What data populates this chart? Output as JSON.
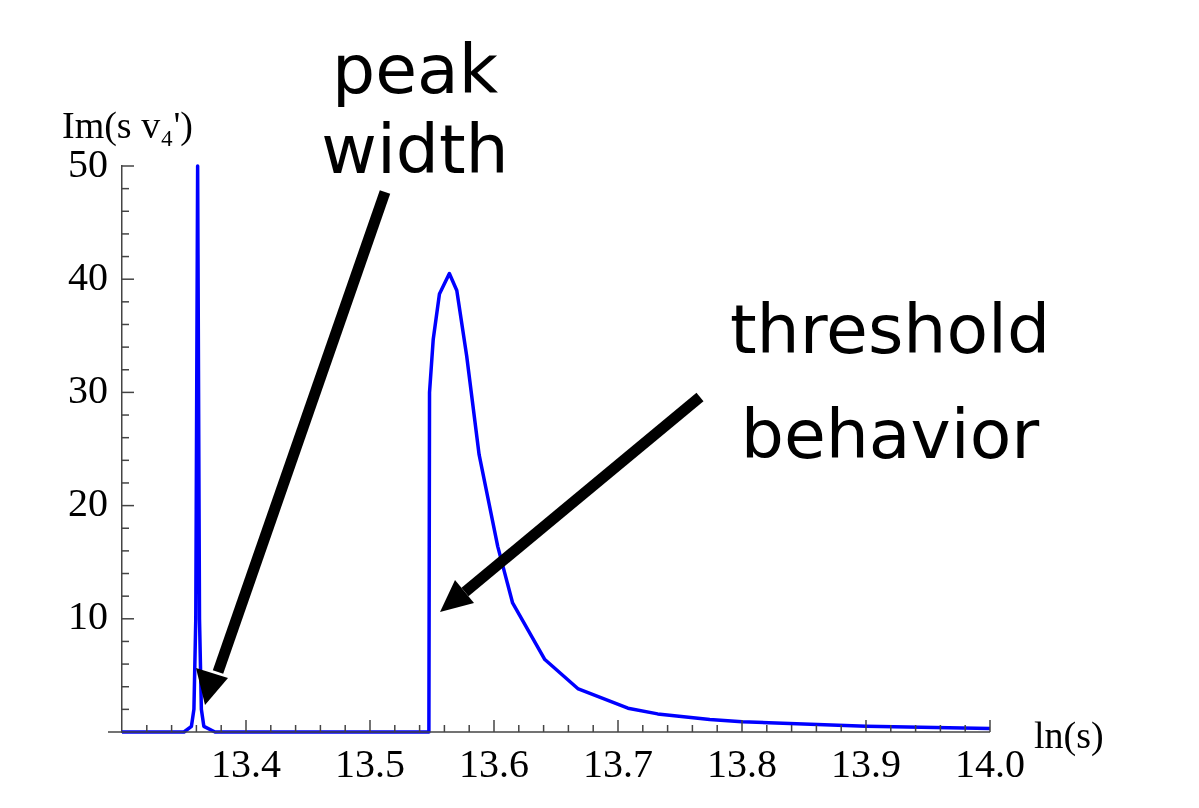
{
  "chart_data": {
    "type": "line",
    "xlabel": "ln(s)",
    "ylabel": "Im(s v₄')",
    "x": [
      13.3,
      13.35,
      13.356,
      13.358,
      13.3595,
      13.361,
      13.3625,
      13.364,
      13.366,
      13.375,
      13.45,
      13.5475,
      13.548,
      13.551,
      13.556,
      13.564,
      13.57,
      13.578,
      13.588,
      13.603,
      13.615,
      13.641,
      13.668,
      13.708,
      13.732,
      13.774,
      13.8,
      13.9,
      14.0
    ],
    "series": [
      {
        "color": "#0000ff",
        "values": [
          0,
          0,
          0.5,
          2,
          10,
          50,
          10,
          2,
          0.5,
          0,
          0,
          0,
          30,
          34.7,
          38.7,
          40.5,
          39,
          33.2,
          24.5,
          16.4,
          11.4,
          6.4,
          3.8,
          2.1,
          1.6,
          1.1,
          0.9,
          0.5,
          0.3
        ]
      }
    ],
    "xlim": [
      13.3,
      14.0
    ],
    "xticks": [
      {
        "value": 13.32,
        "label": null
      },
      {
        "value": 13.34,
        "label": null
      },
      {
        "value": 13.36,
        "label": null
      },
      {
        "value": 13.38,
        "label": null
      },
      13.4,
      {
        "value": 13.42,
        "label": null
      },
      {
        "value": 13.44,
        "label": null
      },
      {
        "value": 13.46,
        "label": null
      },
      {
        "value": 13.48,
        "label": null
      },
      13.5,
      {
        "value": 13.52,
        "label": null
      },
      {
        "value": 13.54,
        "label": null
      },
      {
        "value": 13.56,
        "label": null
      },
      {
        "value": 13.58,
        "label": null
      },
      13.6,
      {
        "value": 13.62,
        "label": null
      },
      {
        "value": 13.64,
        "label": null
      },
      {
        "value": 13.66,
        "label": null
      },
      {
        "value": 13.68,
        "label": null
      },
      13.7,
      {
        "value": 13.72,
        "label": null
      },
      {
        "value": 13.74,
        "label": null
      },
      {
        "value": 13.76,
        "label": null
      },
      {
        "value": 13.78,
        "label": null
      },
      13.8,
      {
        "value": 13.82,
        "label": null
      },
      {
        "value": 13.84,
        "label": null
      },
      {
        "value": 13.86,
        "label": null
      },
      {
        "value": 13.88,
        "label": null
      },
      13.9,
      {
        "value": 13.92,
        "label": null
      },
      {
        "value": 13.94,
        "label": null
      },
      {
        "value": 13.96,
        "label": null
      },
      {
        "value": 13.98,
        "label": null
      },
      {
        "value": 14.0,
        "label": "14.0"
      }
    ],
    "ylim": [
      0,
      50
    ],
    "yticks": [
      {
        "value": 2,
        "label": null
      },
      {
        "value": 4,
        "label": null
      },
      {
        "value": 6,
        "label": null
      },
      {
        "value": 8,
        "label": null
      },
      10,
      {
        "value": 12,
        "label": null
      },
      {
        "value": 14,
        "label": null
      },
      {
        "value": 16,
        "label": null
      },
      {
        "value": 18,
        "label": null
      },
      20,
      {
        "value": 22,
        "label": null
      },
      {
        "value": 24,
        "label": null
      },
      {
        "value": 26,
        "label": null
      },
      {
        "value": 28,
        "label": null
      },
      30,
      {
        "value": 32,
        "label": null
      },
      {
        "value": 34,
        "label": null
      },
      {
        "value": 36,
        "label": null
      },
      {
        "value": 38,
        "label": null
      },
      40,
      {
        "value": 42,
        "label": null
      },
      {
        "value": 44,
        "label": null
      },
      {
        "value": 46,
        "label": null
      },
      {
        "value": 48,
        "label": null
      },
      50
    ],
    "annotations": [
      "peak width",
      "threshold behavior"
    ],
    "grid": false,
    "legend": false,
    "marker": "none",
    "line_style": "solid"
  }
}
